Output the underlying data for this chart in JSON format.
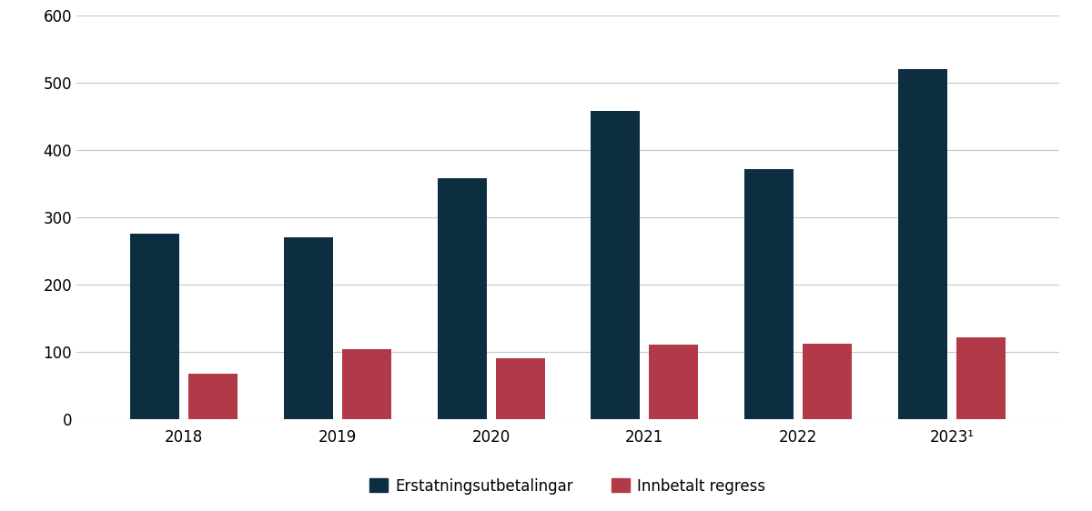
{
  "years": [
    "2018",
    "2019",
    "2020",
    "2021",
    "2022",
    "2023¹"
  ],
  "erstatning": [
    275,
    270,
    358,
    458,
    372,
    520
  ],
  "regress": [
    68,
    104,
    90,
    111,
    112,
    122
  ],
  "erstatning_color": "#0d2d40",
  "regress_color": "#b23a48",
  "ylim": [
    0,
    600
  ],
  "yticks": [
    0,
    100,
    200,
    300,
    400,
    500,
    600
  ],
  "legend_label_erstatning": "Erstatningsutbetalingar",
  "legend_label_regress": "Innbetalt regress",
  "background_color": "#ffffff",
  "grid_color": "#c8c8c8",
  "bar_width": 0.32,
  "bar_gap": 0.06
}
